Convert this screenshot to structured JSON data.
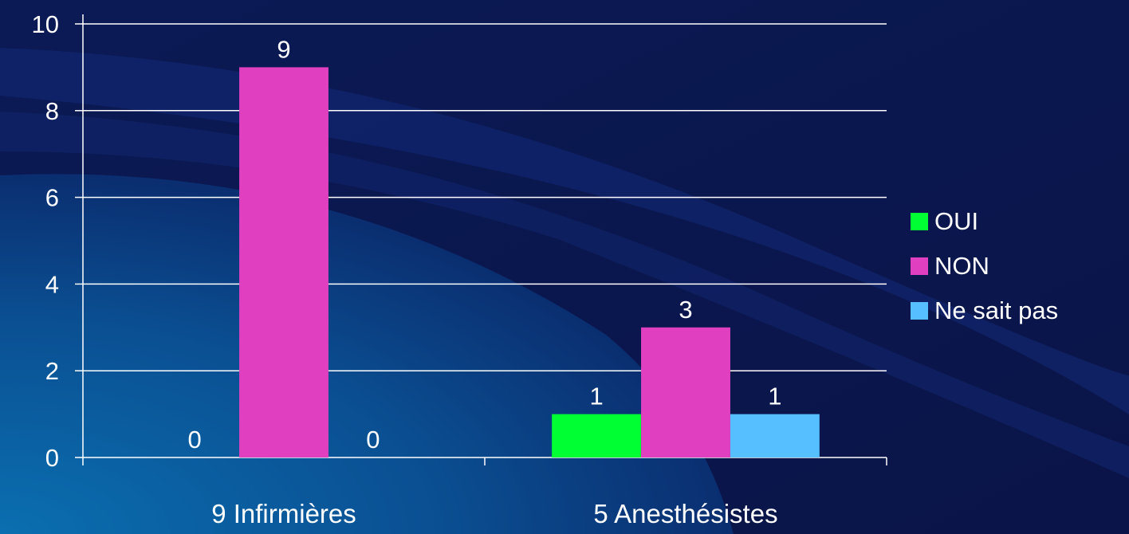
{
  "chart_data": {
    "type": "bar",
    "title": "",
    "xlabel": "",
    "ylabel": "",
    "categories": [
      "9 Infirmières",
      "5 Anesthésistes"
    ],
    "series": [
      {
        "name": "OUI",
        "values": [
          0,
          1
        ],
        "color": "#00ff33"
      },
      {
        "name": "NON",
        "values": [
          9,
          3
        ],
        "color": "#e040c0"
      },
      {
        "name": "Ne sait pas",
        "values": [
          0,
          1
        ],
        "color": "#55bfff"
      }
    ],
    "ylim": [
      0,
      10
    ],
    "yticks": [
      0,
      2,
      4,
      6,
      8,
      10
    ],
    "grid": true,
    "data_labels": true,
    "legend_position": "right",
    "colors": {
      "background": "#0a1850",
      "grid": "#ffffff",
      "text": "#ffffff"
    }
  }
}
